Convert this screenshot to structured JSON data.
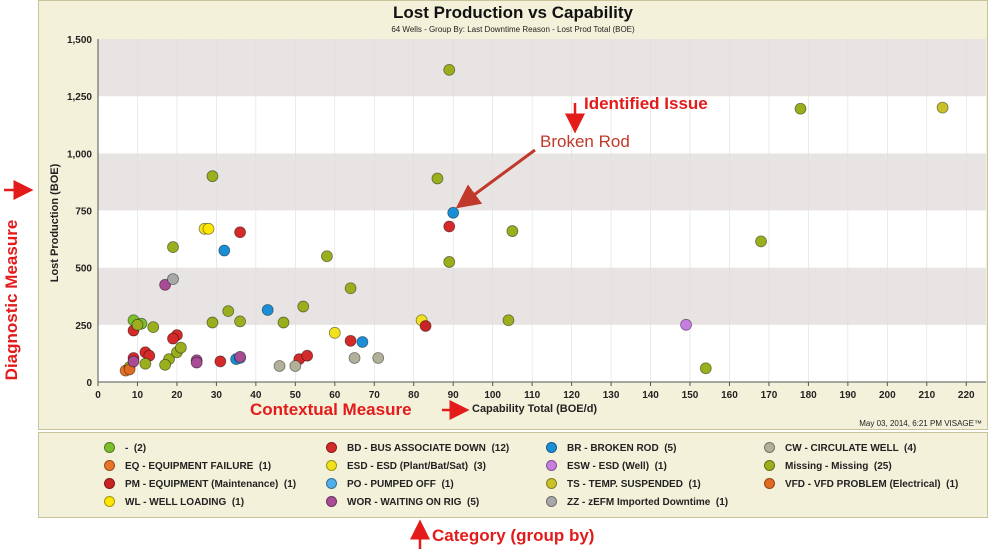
{
  "chart_data": {
    "type": "scatter",
    "title": "Lost Production vs Capability",
    "subtitle": "64 Wells - Group By: Last Downtime Reason - Lost Prod Total (BOE)",
    "xlabel": "Capability Total (BOE/d)",
    "ylabel": "Lost Production (BOE)",
    "xlim": [
      0,
      225
    ],
    "ylim": [
      0,
      1500
    ],
    "x_ticks": [
      0,
      10,
      20,
      30,
      40,
      50,
      60,
      70,
      80,
      90,
      100,
      110,
      120,
      130,
      140,
      150,
      160,
      170,
      180,
      190,
      200,
      210,
      220
    ],
    "y_ticks": [
      0,
      250,
      500,
      750,
      1000,
      1250,
      1500
    ],
    "y_tick_labels": [
      "0",
      "250",
      "500",
      "750",
      "1,000",
      "1,250",
      "1,500"
    ],
    "grid": "horizontal-bands",
    "legend_position": "bottom",
    "timestamp": "May 03, 2014, 6:21 PM VISAGE™",
    "series": [
      {
        "name": "-",
        "count": "(2)",
        "color": "#7cbf2e",
        "points": [
          [
            9,
            270
          ],
          [
            11,
            255
          ]
        ]
      },
      {
        "name": "BD - BUS ASSOCIATE DOWN",
        "count": "(12)",
        "color": "#d42a2a",
        "points": [
          [
            36,
            655
          ],
          [
            89,
            680
          ],
          [
            20,
            205
          ],
          [
            19,
            190
          ],
          [
            9,
            225
          ],
          [
            12,
            130
          ],
          [
            13,
            115
          ],
          [
            9,
            105
          ],
          [
            31,
            90
          ],
          [
            51,
            100
          ],
          [
            53,
            115
          ],
          [
            64,
            180
          ]
        ]
      },
      {
        "name": "BR - BROKEN ROD",
        "count": "(5)",
        "color": "#1b8fd6",
        "points": [
          [
            90,
            740
          ],
          [
            43,
            315
          ],
          [
            35,
            100
          ],
          [
            32,
            575
          ],
          [
            67,
            175
          ]
        ]
      },
      {
        "name": "CW - CIRCULATE WELL",
        "count": "(4)",
        "color": "#b3b09a",
        "points": [
          [
            46,
            70
          ],
          [
            50,
            70
          ],
          [
            65,
            105
          ],
          [
            71,
            105
          ]
        ]
      },
      {
        "name": "EQ - EQUIPMENT FAILURE",
        "count": "(1)",
        "color": "#e8732a",
        "points": [
          [
            7,
            50
          ]
        ]
      },
      {
        "name": "ESD - ESD (Plant/Bat/Sat)",
        "count": "(3)",
        "color": "#f1e21c",
        "points": [
          [
            27,
            670
          ],
          [
            60,
            215
          ],
          [
            82,
            270
          ]
        ]
      },
      {
        "name": "ESW - ESD (Well)",
        "count": "(1)",
        "color": "#c77ee0",
        "points": [
          [
            149,
            250
          ]
        ]
      },
      {
        "name": "Missing - Missing",
        "count": "(25)",
        "color": "#9aae1e",
        "points": [
          [
            89,
            1365
          ],
          [
            178,
            1195
          ],
          [
            29,
            900
          ],
          [
            86,
            890
          ],
          [
            19,
            590
          ],
          [
            58,
            550
          ],
          [
            89,
            525
          ],
          [
            64,
            410
          ],
          [
            52,
            330
          ],
          [
            33,
            310
          ],
          [
            29,
            260
          ],
          [
            36,
            265
          ],
          [
            105,
            660
          ],
          [
            168,
            615
          ],
          [
            104,
            270
          ],
          [
            47,
            260
          ],
          [
            14,
            240
          ],
          [
            18,
            100
          ],
          [
            17,
            75
          ],
          [
            12,
            80
          ],
          [
            8,
            65
          ],
          [
            154,
            60
          ],
          [
            20,
            130
          ],
          [
            21,
            150
          ],
          [
            10,
            250
          ]
        ]
      },
      {
        "name": "PM - EQUIPMENT (Maintenance)",
        "count": "(1)",
        "color": "#c82424",
        "points": [
          [
            83,
            245
          ]
        ]
      },
      {
        "name": "PO - PUMPED OFF",
        "count": "(1)",
        "color": "#52aee8",
        "points": [
          [
            36,
            105
          ]
        ]
      },
      {
        "name": "TS - TEMP. SUSPENDED",
        "count": "(1)",
        "color": "#c8c12a",
        "points": [
          [
            214,
            1200
          ]
        ]
      },
      {
        "name": "VFD - VFD PROBLEM (Electrical)",
        "count": "(1)",
        "color": "#e06a22",
        "points": [
          [
            8,
            55
          ]
        ]
      },
      {
        "name": "WL - WELL LOADING",
        "count": "(1)",
        "color": "#ffe600",
        "points": [
          [
            28,
            670
          ]
        ]
      },
      {
        "name": "WOR - WAITING ON RIG",
        "count": "(5)",
        "color": "#a84c94",
        "points": [
          [
            17,
            425
          ],
          [
            25,
            95
          ],
          [
            9,
            90
          ],
          [
            36,
            110
          ],
          [
            25,
            85
          ]
        ]
      },
      {
        "name": "ZZ - zEFM Imported Downtime",
        "count": "(1)",
        "color": "#a8a8a8",
        "points": [
          [
            19,
            450
          ]
        ]
      }
    ]
  },
  "annotations": {
    "diagnostic": "Diagnostic Measure",
    "identified": "Identified Issue",
    "contextual": "Contextual Measure",
    "category": "Category (group by)",
    "broken_rod": "Broken Rod"
  },
  "colors": {
    "annotation_red": "#e31b1b",
    "arrow": "#c0392b",
    "band_dark": "#e9e4e4",
    "band_light": "#ffffff"
  }
}
